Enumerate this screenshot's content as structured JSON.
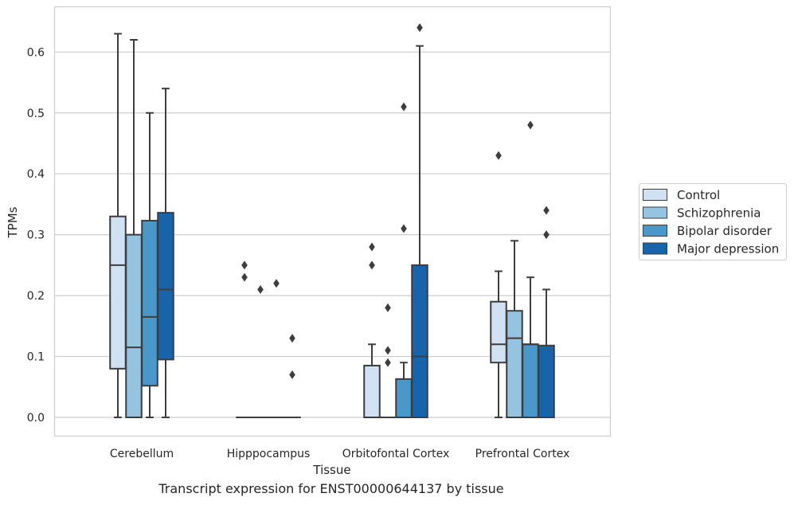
{
  "caption": "Transcript expression for ENST00000644137 by tissue",
  "chart_data": {
    "type": "box",
    "title": "",
    "xlabel": "Tissue",
    "ylabel": "TPMs",
    "ylim": [
      -0.03,
      0.675
    ],
    "yticks": [
      0.0,
      0.1,
      0.2,
      0.3,
      0.4,
      0.5,
      0.6
    ],
    "ytick_labels": [
      "0.0",
      "0.1",
      "0.2",
      "0.3",
      "0.4",
      "0.5",
      "0.6"
    ],
    "grid": "horizontal",
    "legend_position": "right",
    "categories": [
      "Cerebellum",
      "Hipppocampus",
      "Orbitofontal Cortex",
      "Prefrontal Cortex"
    ],
    "series": [
      {
        "name": "Control",
        "color": "#d0e1f2",
        "boxes": [
          {
            "whislo": 0.0,
            "q1": 0.08,
            "med": 0.25,
            "q3": 0.33,
            "whishi": 0.63,
            "fliers": []
          },
          {
            "whislo": 0.0,
            "q1": 0.0,
            "med": 0.0,
            "q3": 0.0,
            "whishi": 0.0,
            "fliers": [
              0.25,
              0.23
            ]
          },
          {
            "whislo": 0.0,
            "q1": 0.0,
            "med": 0.0,
            "q3": 0.085,
            "whishi": 0.12,
            "fliers": [
              0.28,
              0.25
            ]
          },
          {
            "whislo": 0.0,
            "q1": 0.09,
            "med": 0.12,
            "q3": 0.19,
            "whishi": 0.24,
            "fliers": [
              0.43
            ]
          }
        ]
      },
      {
        "name": "Schizophrenia",
        "color": "#94c4df",
        "boxes": [
          {
            "whislo": 0.0,
            "q1": 0.0,
            "med": 0.115,
            "q3": 0.3,
            "whishi": 0.62,
            "fliers": []
          },
          {
            "whislo": 0.0,
            "q1": 0.0,
            "med": 0.0,
            "q3": 0.0,
            "whishi": 0.0,
            "fliers": [
              0.21
            ]
          },
          {
            "whislo": 0.0,
            "q1": 0.0,
            "med": 0.0,
            "q3": 0.0,
            "whishi": 0.0,
            "fliers": [
              0.18,
              0.11,
              0.09
            ]
          },
          {
            "whislo": 0.0,
            "q1": 0.0,
            "med": 0.13,
            "q3": 0.175,
            "whishi": 0.29,
            "fliers": []
          }
        ]
      },
      {
        "name": "Bipolar disorder",
        "color": "#4a98c9",
        "boxes": [
          {
            "whislo": 0.0,
            "q1": 0.052,
            "med": 0.165,
            "q3": 0.323,
            "whishi": 0.5,
            "fliers": []
          },
          {
            "whislo": 0.0,
            "q1": 0.0,
            "med": 0.0,
            "q3": 0.0,
            "whishi": 0.0,
            "fliers": [
              0.22
            ]
          },
          {
            "whislo": 0.0,
            "q1": 0.0,
            "med": 0.0,
            "q3": 0.063,
            "whishi": 0.09,
            "fliers": [
              0.51,
              0.31
            ]
          },
          {
            "whislo": 0.0,
            "q1": 0.0,
            "med": 0.12,
            "q3": 0.12,
            "whishi": 0.23,
            "fliers": [
              0.48
            ]
          }
        ]
      },
      {
        "name": "Major depression",
        "color": "#1764ab",
        "boxes": [
          {
            "whislo": 0.0,
            "q1": 0.095,
            "med": 0.21,
            "q3": 0.336,
            "whishi": 0.54,
            "fliers": []
          },
          {
            "whislo": 0.0,
            "q1": 0.0,
            "med": 0.0,
            "q3": 0.0,
            "whishi": 0.0,
            "fliers": [
              0.13,
              0.07
            ]
          },
          {
            "whislo": 0.0,
            "q1": 0.0,
            "med": 0.1,
            "q3": 0.25,
            "whishi": 0.61,
            "fliers": [
              0.64
            ]
          },
          {
            "whislo": 0.0,
            "q1": 0.0,
            "med": 0.0,
            "q3": 0.118,
            "whishi": 0.21,
            "fliers": [
              0.34,
              0.3
            ]
          }
        ]
      }
    ]
  }
}
